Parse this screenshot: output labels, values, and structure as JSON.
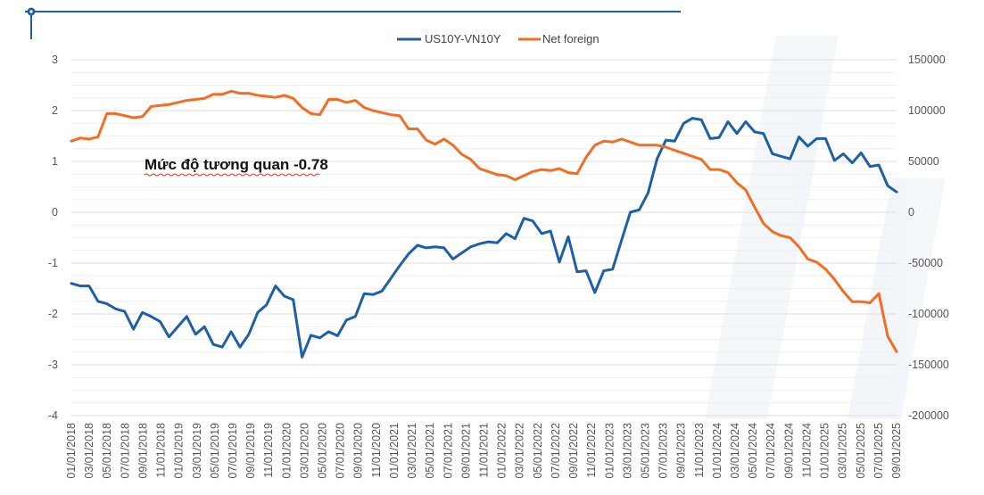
{
  "chart_data": {
    "type": "line",
    "title": "",
    "annotation": "Mức độ tương quan -0.78",
    "legend_position": "top-center",
    "grid": true,
    "y_left": {
      "min": -4,
      "max": 3,
      "step": 1,
      "ticks": [
        "3",
        "2",
        "1",
        "0",
        "-1",
        "-2",
        "-3",
        "-4"
      ]
    },
    "y_right": {
      "min": -200000,
      "max": 150000,
      "step": 50000,
      "ticks": [
        "150000",
        "100000",
        "50000",
        "0",
        "-50000",
        "-100000",
        "-150000",
        "-200000"
      ]
    },
    "x_tick_labels": [
      "01/01/2018",
      "03/01/2018",
      "05/01/2018",
      "07/01/2018",
      "09/01/2018",
      "11/01/2018",
      "01/01/2019",
      "03/01/2019",
      "05/01/2019",
      "07/01/2019",
      "09/01/2019",
      "11/01/2019",
      "01/01/2020",
      "03/01/2020",
      "05/01/2020",
      "07/01/2020",
      "09/01/2020",
      "11/01/2020",
      "01/01/2021",
      "03/01/2021",
      "05/01/2021",
      "07/01/2021",
      "09/01/2021",
      "11/01/2021",
      "01/01/2022",
      "03/01/2022",
      "05/01/2022",
      "07/01/2022",
      "09/01/2022",
      "11/01/2022",
      "01/01/2023",
      "03/01/2023",
      "05/01/2023",
      "07/01/2023",
      "09/01/2023",
      "11/01/2023",
      "01/01/2024",
      "03/01/2024",
      "05/01/2024",
      "07/01/2024",
      "09/01/2024",
      "11/01/2024",
      "01/01/2025",
      "03/01/2025",
      "05/01/2025",
      "07/01/2025",
      "09/01/2025"
    ],
    "series": [
      {
        "name": "US10Y-VN10Y",
        "color": "#1F5FA6",
        "axis": "left",
        "values": [
          -1.4,
          -1.45,
          -1.45,
          -1.75,
          -1.8,
          -1.9,
          -1.95,
          -2.3,
          -1.97,
          -2.05,
          -2.15,
          -2.45,
          -2.25,
          -2.05,
          -2.4,
          -2.25,
          -2.6,
          -2.65,
          -2.35,
          -2.65,
          -2.4,
          -1.97,
          -1.82,
          -1.45,
          -1.65,
          -1.72,
          -2.85,
          -2.42,
          -2.47,
          -2.35,
          -2.43,
          -2.12,
          -2.05,
          -1.6,
          -1.62,
          -1.55,
          -1.3,
          -1.05,
          -0.82,
          -0.65,
          -0.7,
          -0.68,
          -0.7,
          -0.92,
          -0.8,
          -0.68,
          -0.62,
          -0.58,
          -0.6,
          -0.42,
          -0.52,
          -0.12,
          -0.17,
          -0.42,
          -0.37,
          -0.98,
          -0.48,
          -1.17,
          -1.15,
          -1.58,
          -1.15,
          -1.12,
          -0.55,
          0.0,
          0.05,
          0.38,
          1.05,
          1.42,
          1.4,
          1.75,
          1.85,
          1.82,
          1.45,
          1.47,
          1.78,
          1.55,
          1.78,
          1.58,
          1.55,
          1.15,
          1.1,
          1.05,
          1.48,
          1.3,
          1.45,
          1.45,
          1.02,
          1.15,
          0.97,
          1.17,
          0.9,
          0.93,
          0.52,
          0.4
        ]
      },
      {
        "name": "Net foreign",
        "color": "#F26E22",
        "axis": "right",
        "values": [
          70000,
          73000,
          72000,
          74000,
          97000,
          97000,
          95000,
          93000,
          94000,
          104000,
          105000,
          106000,
          108000,
          110000,
          111000,
          112000,
          116000,
          116000,
          119000,
          117000,
          117000,
          115000,
          114000,
          113000,
          115000,
          112000,
          103000,
          97000,
          96000,
          111000,
          111000,
          108000,
          110000,
          103000,
          100000,
          98000,
          96000,
          95000,
          82000,
          82000,
          71000,
          67000,
          72000,
          66000,
          57000,
          52000,
          43000,
          40000,
          37000,
          36000,
          32000,
          36000,
          40000,
          42000,
          41000,
          43000,
          39000,
          38000,
          54000,
          66000,
          70000,
          69000,
          72000,
          69000,
          66000,
          66000,
          66000,
          64000,
          61000,
          58000,
          55000,
          52000,
          42000,
          42000,
          39000,
          29000,
          22000,
          5000,
          -11000,
          -19000,
          -23000,
          -25000,
          -34000,
          -46000,
          -49000,
          -56000,
          -66000,
          -78000,
          -88000,
          -88000,
          -89000,
          -80000,
          -122000,
          -137000
        ]
      }
    ]
  },
  "page": {
    "accent_color": "#1F5FA6",
    "brand_icon": "gear-icon"
  }
}
